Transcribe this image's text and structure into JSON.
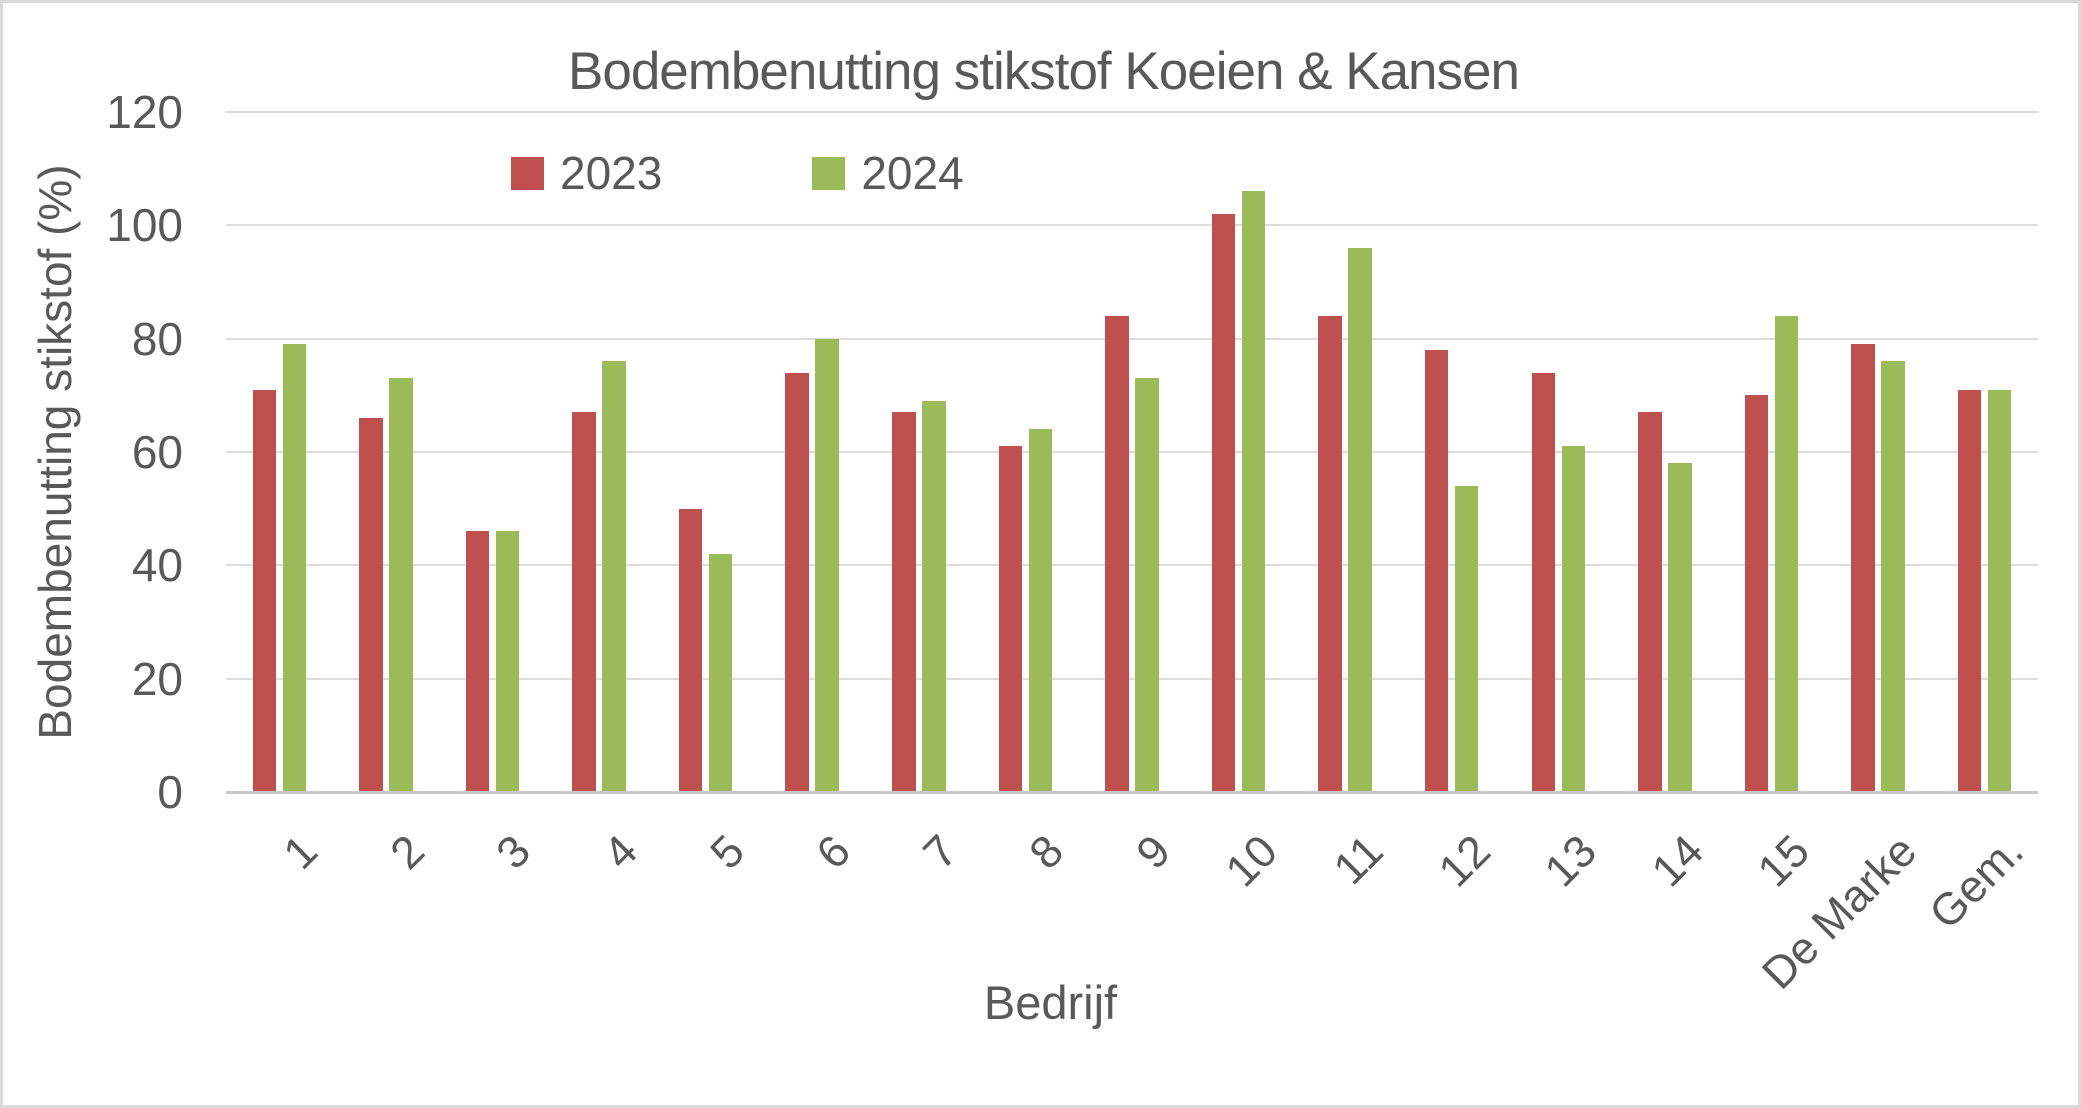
{
  "title": "Bodembenutting stikstof Koeien & Kansen",
  "chart_data": {
    "type": "bar",
    "title": "Bodembenutting stikstof Koeien & Kansen",
    "xlabel": "Bedrijf",
    "ylabel": "Bodembenutting stikstof (%)",
    "categories": [
      "1",
      "2",
      "3",
      "4",
      "5",
      "6",
      "7",
      "8",
      "9",
      "10",
      "11",
      "12",
      "13",
      "14",
      "15",
      "De Marke",
      "Gem."
    ],
    "series": [
      {
        "name": "2023",
        "color": "#C0504D",
        "values": [
          71,
          66,
          46,
          67,
          50,
          74,
          67,
          61,
          84,
          102,
          84,
          78,
          74,
          67,
          70,
          79,
          71
        ]
      },
      {
        "name": "2024",
        "color": "#9BBB59",
        "values": [
          79,
          73,
          46,
          76,
          42,
          80,
          69,
          64,
          73,
          106,
          96,
          54,
          61,
          58,
          84,
          76,
          71
        ]
      }
    ],
    "ylim": [
      0,
      120
    ],
    "ytick_step": 20,
    "yticks": [
      "0",
      "20",
      "40",
      "60",
      "80",
      "100",
      "120"
    ],
    "grid": true,
    "legend_position": "top"
  },
  "colors": {
    "series_2023": "#C0504D",
    "series_2024": "#9BBB59",
    "text": "#595959",
    "gridline": "#DCDCDC",
    "axis_line": "#C9C9C9",
    "background": "#FFFFFF",
    "border": "#D9D9D9"
  }
}
